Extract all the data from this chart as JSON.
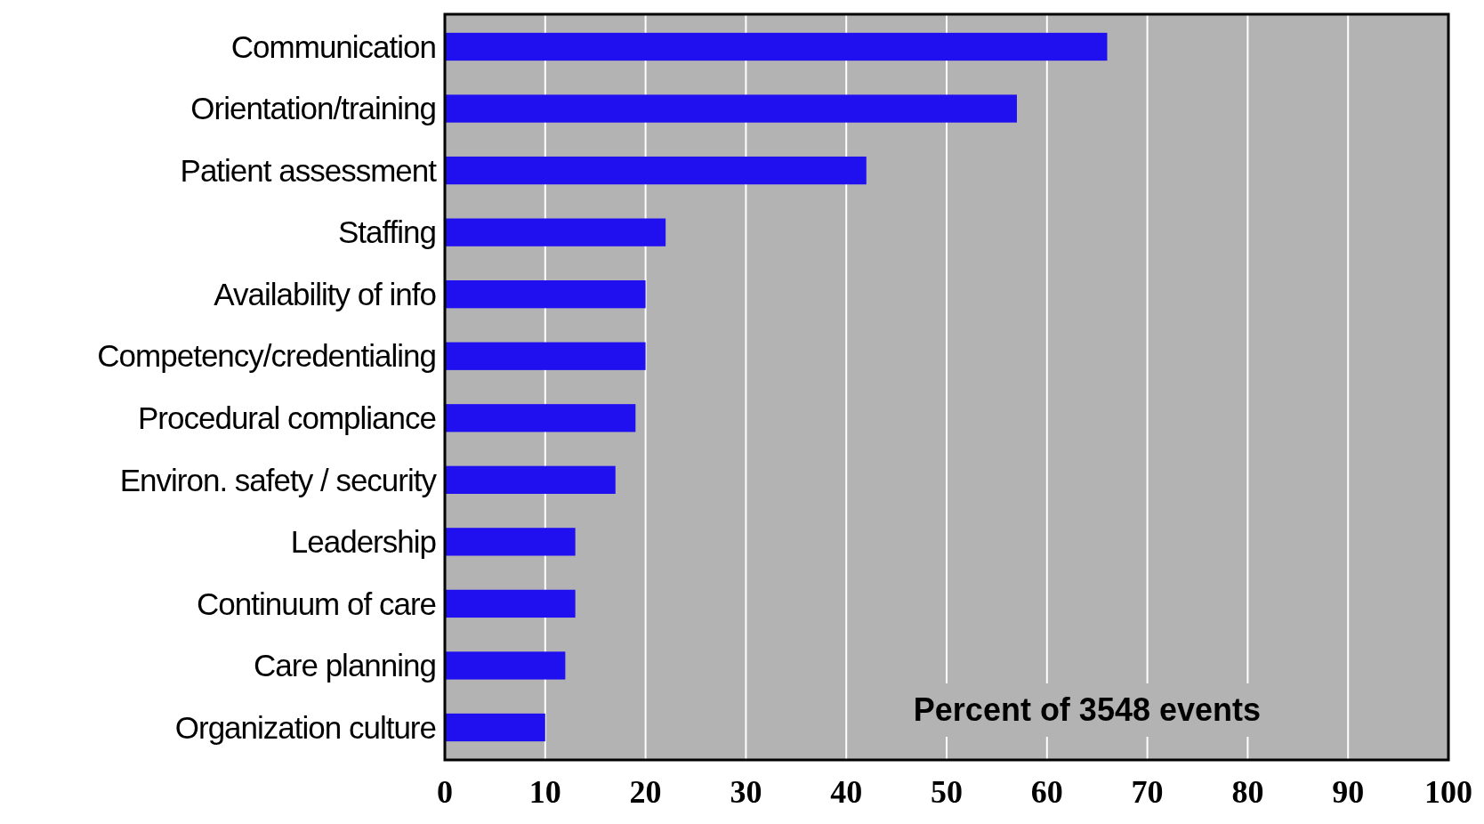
{
  "chart_data": {
    "type": "bar",
    "orientation": "horizontal",
    "xlabel": "Percent of 3548 events",
    "categories": [
      "Communication",
      "Orientation/training",
      "Patient assessment",
      "Staffing",
      "Availability of info",
      "Competency/credentialing",
      "Procedural compliance",
      "Environ. safety / security",
      "Leadership",
      "Continuum of care",
      "Care planning",
      "Organization culture"
    ],
    "values": [
      66,
      57,
      42,
      22,
      20,
      20,
      19,
      17,
      13,
      13,
      12,
      10
    ],
    "color": "#2010f0",
    "xlim": [
      0,
      100
    ],
    "xticks": [
      0,
      10,
      20,
      30,
      40,
      50,
      60,
      70,
      80,
      90,
      100
    ],
    "grid": "x"
  }
}
